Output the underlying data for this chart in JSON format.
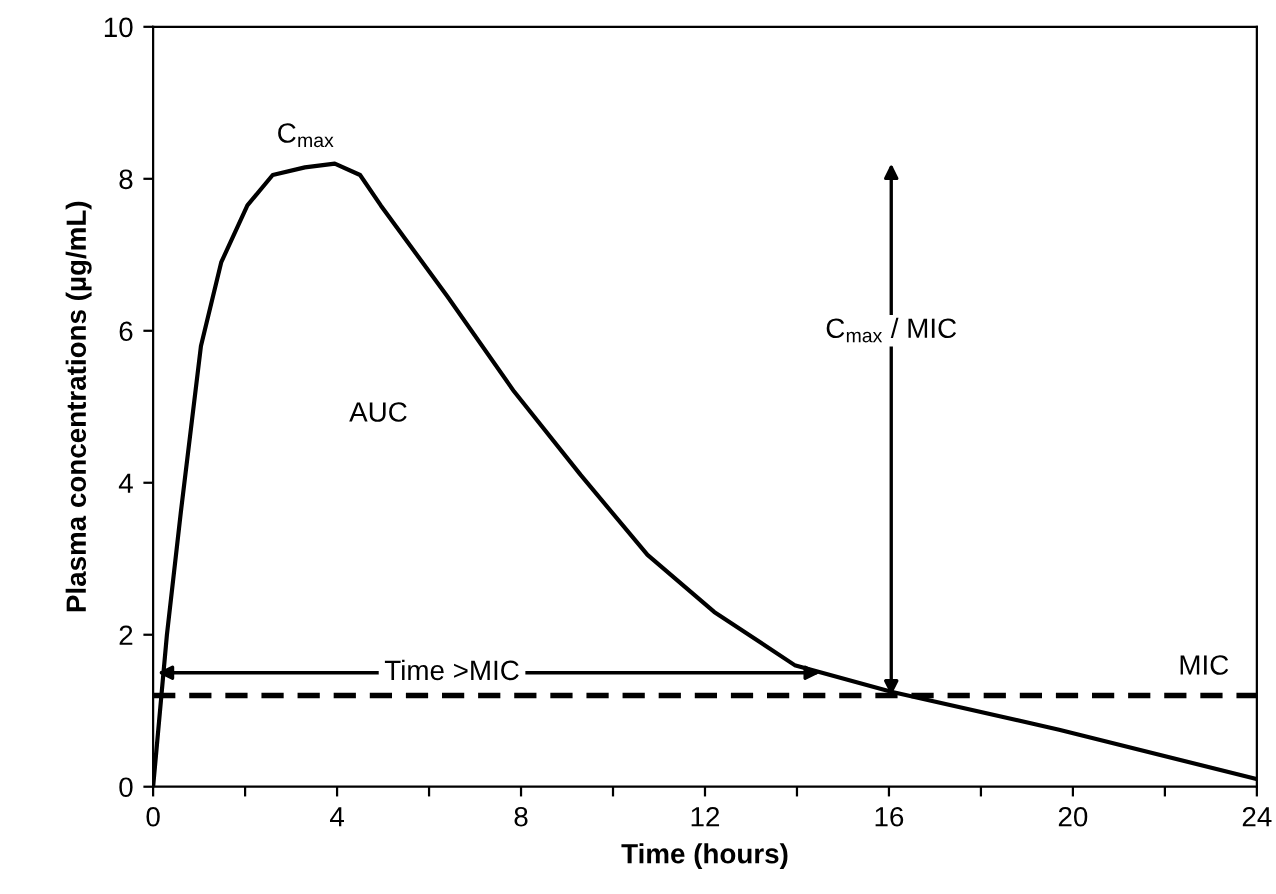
{
  "chart_data": {
    "type": "line",
    "xlabel": "Time (hours)",
    "ylabel": "Plasma concentrations (µg/mL)",
    "x": [
      0,
      0.3,
      0.6,
      1.04,
      1.48,
      2.05,
      2.6,
      3.3,
      3.95,
      4.5,
      4.95,
      6.4,
      7.85,
      9.3,
      10.75,
      12.2,
      13.95,
      16.05,
      19.7,
      24
    ],
    "series": [
      {
        "color": "#000000",
        "values": [
          0,
          2.0,
          3.6,
          5.8,
          6.9,
          7.65,
          8.05,
          8.15,
          8.2,
          8.05,
          7.65,
          6.45,
          5.2,
          4.1,
          3.05,
          2.3,
          1.6,
          1.25,
          0.75,
          0.1
        ]
      }
    ],
    "xlim": [
      0,
      24
    ],
    "ylim": [
      0,
      10
    ],
    "xticks": [
      0,
      {
        "value": 2,
        "label": null
      },
      4,
      {
        "value": 6,
        "label": null
      },
      8,
      {
        "value": 10,
        "label": null
      },
      12,
      {
        "value": 14,
        "label": null
      },
      16,
      {
        "value": 18,
        "label": null
      },
      20,
      {
        "value": 22,
        "label": null
      },
      24
    ],
    "yticks": [
      0,
      2,
      4,
      6,
      8,
      10
    ],
    "marker": "none",
    "line_style": "solid",
    "grid": false,
    "ref_lines": [
      {
        "axis": "y",
        "value": 1.2,
        "label": "MIC",
        "color": "#000000",
        "line_style": "dashed"
      }
    ],
    "annotations": [
      {
        "text": "C$_{max}$",
        "x": 3.95,
        "y": 8.2
      },
      "AUC",
      "Time >MIC",
      "C$_{max}$ / MIC"
    ]
  }
}
